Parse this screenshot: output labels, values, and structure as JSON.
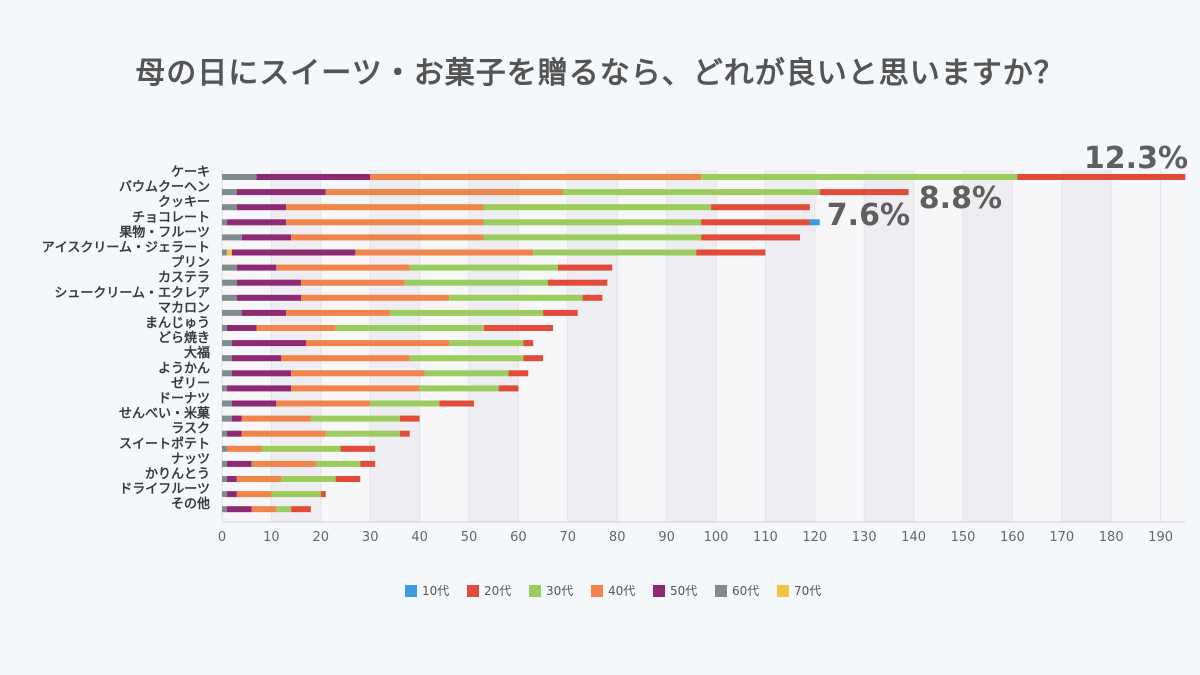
{
  "chart_data": {
    "type": "bar",
    "orientation": "horizontal",
    "stacked": true,
    "title": "母の日にスイーツ・お菓子を贈るなら、どれが良いと思いますか？",
    "xlabel": "",
    "ylabel": "",
    "xlim": [
      0,
      195
    ],
    "xticks": [
      0,
      10,
      20,
      30,
      40,
      50,
      60,
      70,
      80,
      90,
      100,
      110,
      120,
      130,
      140,
      150,
      160,
      170,
      180,
      190
    ],
    "grid": "vertical bands",
    "legend_position": "bottom",
    "categories": [
      "ケーキ",
      "バウムクーヘン",
      "クッキー",
      "チョコレート",
      "果物・フルーツ",
      "アイスクリーム・ジェラート",
      "プリン",
      "カステラ",
      "シュークリーム・エクレア",
      "マカロン",
      "まんじゅう",
      "どら焼き",
      "大福",
      "ようかん",
      "ゼリー",
      "ドーナツ",
      "せんべい・米菓",
      "ラスク",
      "スイートポテト",
      "ナッツ",
      "かりんとう",
      "ドライフルーツ",
      "その他"
    ],
    "series": [
      {
        "name": "60代",
        "color": "#7f8c8d",
        "values": [
          7,
          3,
          3,
          1,
          4,
          1,
          3,
          3,
          3,
          4,
          1,
          2,
          2,
          2,
          1,
          2,
          2,
          1,
          1,
          1,
          1,
          1,
          1
        ]
      },
      {
        "name": "70代",
        "color": "#f5c342",
        "values": [
          0,
          0,
          0,
          0,
          0,
          1,
          0,
          0,
          0,
          0,
          0,
          0,
          0,
          0,
          0,
          0,
          0,
          0,
          0,
          0,
          0,
          0,
          0
        ]
      },
      {
        "name": "50代",
        "color": "#8e2a74",
        "values": [
          23,
          18,
          10,
          12,
          10,
          25,
          8,
          13,
          13,
          9,
          6,
          15,
          10,
          12,
          13,
          9,
          2,
          3,
          0,
          5,
          2,
          2,
          5
        ]
      },
      {
        "name": "40代",
        "color": "#f0844b",
        "values": [
          67,
          48,
          40,
          40,
          39,
          36,
          27,
          21,
          30,
          21,
          16,
          29,
          26,
          27,
          26,
          19,
          14,
          17,
          7,
          13,
          9,
          7,
          5
        ]
      },
      {
        "name": "30代",
        "color": "#9ccc5e",
        "values": [
          64,
          52,
          46,
          44,
          44,
          33,
          30,
          29,
          27,
          31,
          30,
          15,
          23,
          17,
          16,
          14,
          18,
          15,
          16,
          9,
          11,
          10,
          3
        ]
      },
      {
        "name": "20代",
        "color": "#e04b3a",
        "values": [
          34,
          18,
          20,
          22,
          20,
          14,
          11,
          12,
          4,
          7,
          14,
          2,
          4,
          4,
          4,
          7,
          4,
          2,
          7,
          3,
          5,
          1,
          4
        ]
      },
      {
        "name": "10代",
        "color": "#3c9be3",
        "values": [
          0,
          0,
          0,
          2,
          0,
          0,
          0,
          0,
          0,
          0,
          0,
          0,
          0,
          0,
          0,
          0,
          0,
          0,
          0,
          0,
          0,
          0,
          0
        ]
      }
    ],
    "legend": [
      {
        "name": "10代",
        "color": "#3c9be3"
      },
      {
        "name": "20代",
        "color": "#e04b3a"
      },
      {
        "name": "30代",
        "color": "#9ccc5e"
      },
      {
        "name": "40代",
        "color": "#f0844b"
      },
      {
        "name": "50代",
        "color": "#8e2a74"
      },
      {
        "name": "60代",
        "color": "#7f8c8d"
      },
      {
        "name": "70代",
        "color": "#f5c342"
      }
    ],
    "annotations": [
      {
        "text": "12.3%",
        "category": "ケーキ"
      },
      {
        "text": "8.8%",
        "category": "バウムクーヘン"
      },
      {
        "text": "7.6%",
        "category": "チョコレート"
      }
    ]
  }
}
